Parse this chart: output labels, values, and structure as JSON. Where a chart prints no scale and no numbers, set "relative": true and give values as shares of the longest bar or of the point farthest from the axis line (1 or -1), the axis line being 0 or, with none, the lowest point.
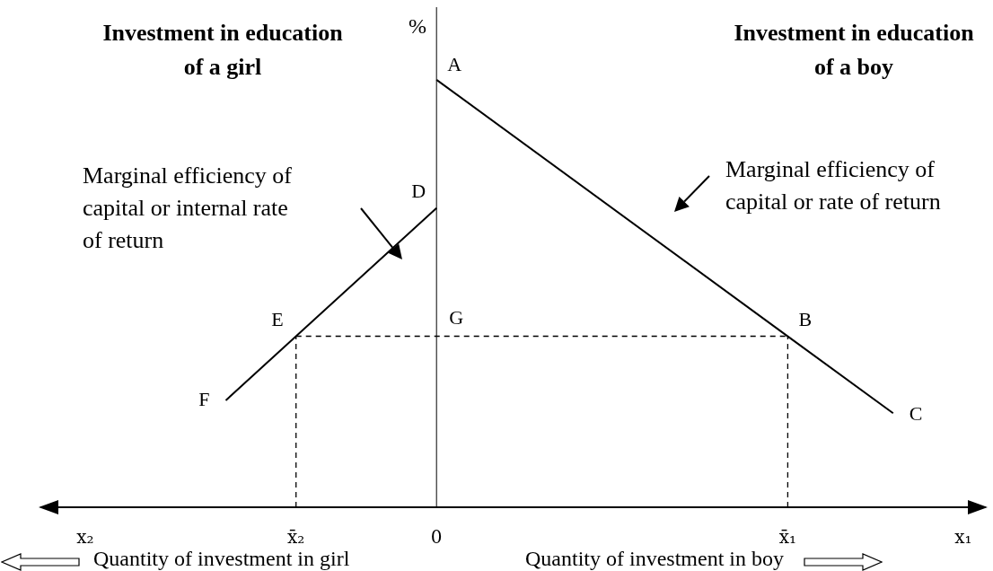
{
  "chart_data": {
    "type": "line",
    "relative": true,
    "ylabel": "%",
    "categories": [
      "x₂",
      null,
      null,
      null,
      null,
      null,
      "x̄₂",
      null,
      null,
      null,
      "0",
      null,
      null,
      null,
      null,
      null,
      null,
      null,
      null,
      null,
      "x̄₁",
      null,
      null,
      null,
      null,
      "x₁"
    ],
    "series": [
      {
        "name": "Marginal efficiency of capital or internal rate of return",
        "color": "#000000",
        "line_style": "solid",
        "values": [
          null,
          null,
          null,
          null,
          0.25,
          null,
          0.4,
          null,
          null,
          null,
          0.7,
          null,
          null,
          null,
          null,
          null,
          null,
          null,
          null,
          null,
          null,
          null,
          null,
          null,
          null,
          null
        ]
      },
      {
        "name": "Marginal efficiency of capital or rate of return",
        "color": "#000000",
        "line_style": "solid",
        "values": [
          null,
          null,
          null,
          null,
          null,
          null,
          null,
          null,
          null,
          null,
          1,
          null,
          null,
          null,
          null,
          null,
          null,
          null,
          null,
          null,
          0.4,
          null,
          null,
          0.22,
          null,
          null
        ]
      },
      {
        "color": "#000000",
        "line_style": "dashed",
        "values": [
          null,
          null,
          null,
          null,
          null,
          null,
          0.4,
          null,
          null,
          null,
          null,
          null,
          null,
          null,
          null,
          null,
          null,
          null,
          null,
          null,
          0.4,
          null,
          null,
          null,
          null,
          null
        ]
      }
    ],
    "ref_lines": [
      {
        "axis": "x",
        "value": "0",
        "color": "#000000",
        "line_style": "solid"
      },
      {
        "axis": "x",
        "value": "x̄₂",
        "color": "#000000",
        "line_style": "dashed"
      },
      {
        "axis": "x",
        "value": "x̄₁",
        "color": "#000000",
        "line_style": "dashed"
      }
    ],
    "annotations": [
      "Investment in education of a girl",
      "Investment in education of a boy",
      "Quantity of investment in girl",
      "Quantity of investment in boy",
      {
        "text": "A",
        "x": "0",
        "y": 1
      },
      {
        "text": "D",
        "x": "0",
        "y": 0.7
      },
      {
        "text": "E",
        "x": "x̄₂",
        "y": 0.4
      },
      {
        "text": "G",
        "x": "0",
        "y": 0.4
      },
      {
        "text": "B",
        "x": "x̄₁",
        "y": 0.4
      },
      "F",
      "C"
    ]
  }
}
